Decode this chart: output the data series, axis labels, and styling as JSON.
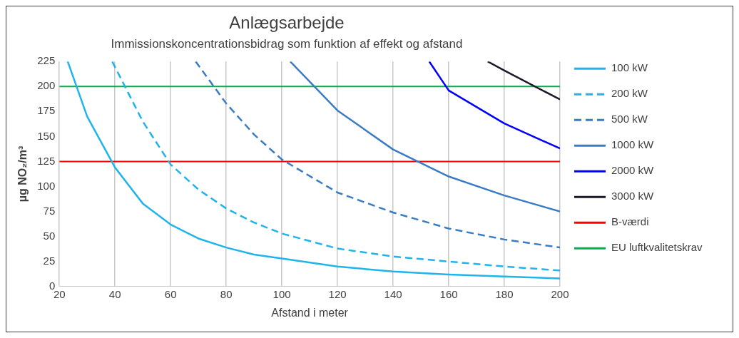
{
  "chart_data": {
    "type": "line",
    "title": "Anlægsarbejde",
    "subtitle": "Immissionskoncentrationsbidrag som funktion af effekt og afstand",
    "xlabel": "Afstand i meter",
    "ylabel": "µg NO₂/m³",
    "xlim": [
      20,
      200
    ],
    "xticks": [
      20,
      40,
      60,
      80,
      100,
      120,
      140,
      160,
      180,
      200
    ],
    "ylim": [
      0,
      225
    ],
    "yticks": [
      0,
      25,
      50,
      75,
      100,
      125,
      150,
      175,
      200,
      225
    ],
    "grid": "x",
    "legend": "right",
    "marker": "none",
    "series": [
      {
        "name": "100 kW",
        "color": "#1fb4ec",
        "line_style": "solid",
        "x": [
          23,
          30,
          40,
          50,
          60,
          70,
          80,
          90,
          100,
          120,
          140,
          160,
          180,
          200
        ],
        "values": [
          225,
          170,
          119,
          83,
          62,
          48,
          39,
          32,
          28,
          20,
          15,
          12,
          10,
          8
        ]
      },
      {
        "name": "200 kW",
        "color": "#1fb4ec",
        "line_style": "dashed",
        "x": [
          39,
          50,
          60,
          70,
          80,
          90,
          100,
          120,
          140,
          160,
          180,
          200
        ],
        "values": [
          225,
          165,
          122,
          97,
          78,
          64,
          53,
          38,
          30,
          25,
          20,
          16
        ]
      },
      {
        "name": "500 kW",
        "color": "#3a7cc4",
        "line_style": "dashed",
        "x": [
          69,
          80,
          90,
          100,
          120,
          140,
          160,
          180,
          200
        ],
        "values": [
          225,
          183,
          152,
          127,
          94,
          74,
          58,
          47,
          39
        ]
      },
      {
        "name": "1000 kW",
        "color": "#3a7cc4",
        "line_style": "solid",
        "x": [
          103,
          120,
          140,
          160,
          180,
          200
        ],
        "values": [
          225,
          176,
          137,
          110,
          91,
          75
        ]
      },
      {
        "name": "2000 kW",
        "color": "#0000ff",
        "line_style": "solid",
        "x": [
          153,
          160,
          180,
          200
        ],
        "values": [
          225,
          196,
          163,
          138
        ]
      },
      {
        "name": "3000 kW",
        "color": "#1a1a2a",
        "line_style": "solid",
        "x": [
          174,
          180,
          200
        ],
        "values": [
          225,
          216,
          187
        ]
      }
    ],
    "ref_lines": [
      {
        "axis": "y",
        "value": 125,
        "label": "B-værdi",
        "color": "#ff0000"
      },
      {
        "axis": "y",
        "value": 200,
        "label": "EU luftkvalitetskrav",
        "color": "#00b050"
      }
    ]
  }
}
